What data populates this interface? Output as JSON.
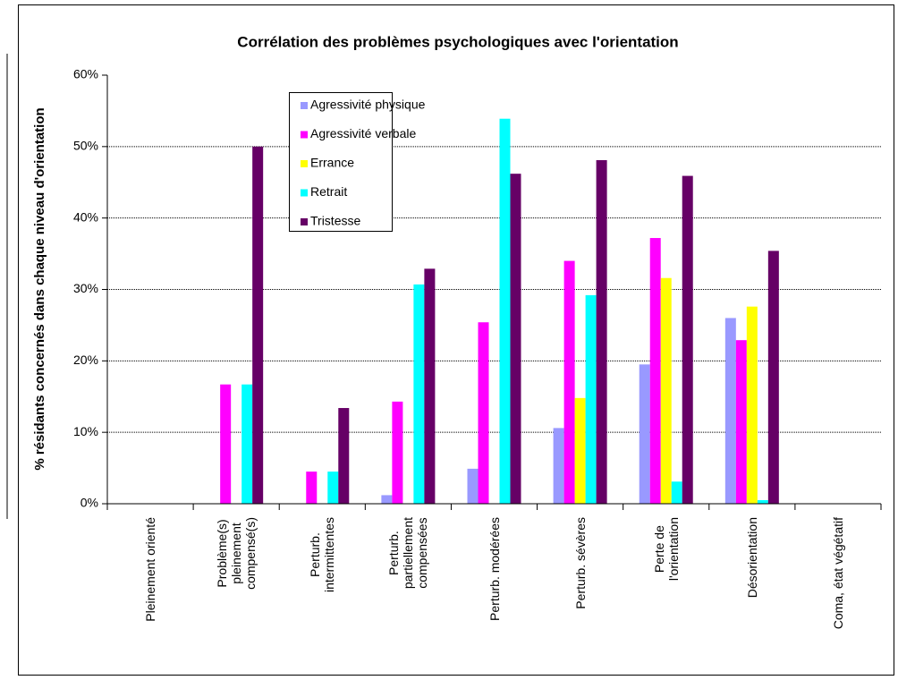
{
  "chart_data": {
    "type": "bar",
    "title": "Corrélation des problèmes psychologiques avec l'orientation",
    "y_label": "% résidants concernés dans chaque niveau d'orientation",
    "categories": [
      "Pleinement orienté",
      "Problème(s)\npleinement\ncompensé(s)",
      "Perturb.\nintermittentes",
      "Perturb.\npartiellement\ncompensées",
      "Perturb. modérées",
      "Perturb. sévères",
      "Perte de\nl'orientation",
      "Désorientation",
      "Coma, état végétatif"
    ],
    "series": [
      {
        "name": "Agressivité physique",
        "color": "#9999ff",
        "values": [
          0,
          0,
          0,
          1.2,
          4.9,
          10.6,
          19.5,
          26,
          0
        ]
      },
      {
        "name": "Agressivité verbale",
        "color": "#ff00ff",
        "values": [
          0,
          16.7,
          4.5,
          14.3,
          25.4,
          34.0,
          37.2,
          22.9,
          0
        ]
      },
      {
        "name": "Errance",
        "color": "#ffff00",
        "values": [
          0,
          0,
          0,
          0,
          0,
          14.8,
          31.6,
          27.6,
          0
        ]
      },
      {
        "name": "Retrait",
        "color": "#00ffff",
        "values": [
          0,
          16.7,
          4.5,
          30.7,
          53.9,
          29.2,
          3.1,
          0.5,
          0
        ]
      },
      {
        "name": "Tristesse",
        "color": "#660066",
        "values": [
          0,
          50,
          13.4,
          32.9,
          46.2,
          48.1,
          45.9,
          35.4,
          0
        ]
      }
    ],
    "ylim": [
      0,
      60
    ],
    "yticks": [
      {
        "value": 0,
        "label": "0%"
      },
      {
        "value": 10,
        "label": "10%"
      },
      {
        "value": 20,
        "label": "20%"
      },
      {
        "value": 30,
        "label": "30%"
      },
      {
        "value": 40,
        "label": "40%"
      },
      {
        "value": 50,
        "label": "50%"
      },
      {
        "value": 60,
        "label": "60%"
      }
    ],
    "grid": true,
    "legend": "top-left"
  }
}
